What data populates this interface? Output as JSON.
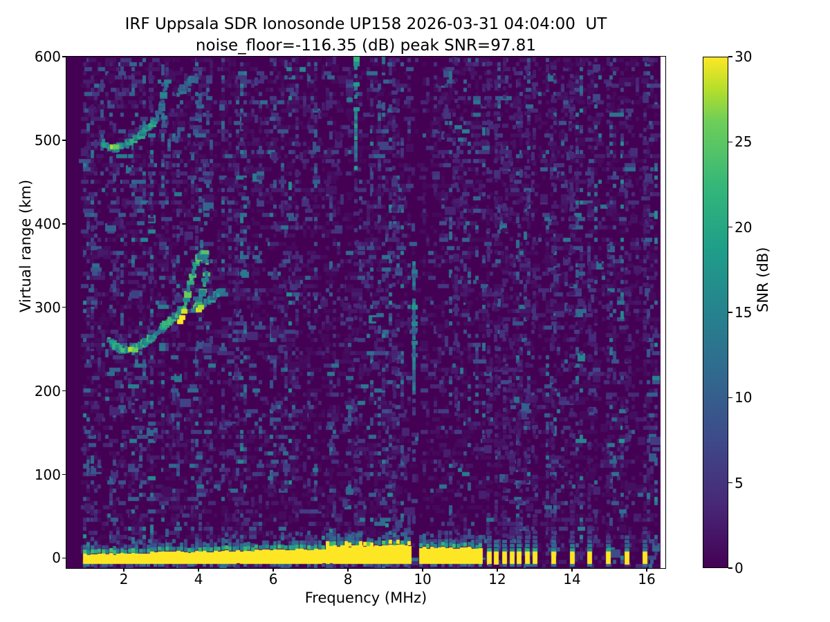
{
  "title": {
    "line1": "IRF Uppsala SDR Ionosonde UP158 2026-03-31 04:04:00  UT",
    "line2": "noise_floor=-116.35 (dB) peak SNR=97.81"
  },
  "chart_data": {
    "type": "heatmap",
    "title": "IRF Uppsala SDR Ionosonde UP158 2026-03-31 04:04:00  UT",
    "subtitle": "noise_floor=-116.35 (dB) peak SNR=97.81",
    "station": "UP158",
    "timestamp_ut": "2026-03-31 04:04:00",
    "noise_floor_db": -116.35,
    "peak_snr_db": 97.81,
    "xlabel": "Frequency (MHz)",
    "ylabel": "Virtual range (km)",
    "xlim": [
      0.46,
      16.5
    ],
    "ylim": [
      -12,
      600
    ],
    "xticks": [
      2,
      4,
      6,
      8,
      10,
      12,
      14,
      16
    ],
    "yticks": [
      0,
      100,
      200,
      300,
      400,
      500,
      600
    ],
    "grid": false,
    "colorbar": {
      "label": "SNR (dB)",
      "min": 0,
      "max": 30,
      "ticks": [
        0,
        5,
        10,
        15,
        20,
        25,
        30
      ],
      "colormap": "viridis"
    },
    "colors": {
      "background_min": "#440154",
      "peak_max": "#fde725",
      "frame": "#000000",
      "page": "#ffffff"
    },
    "viridis_stops": [
      [
        0.0,
        68,
        1,
        84
      ],
      [
        0.125,
        72,
        40,
        120
      ],
      [
        0.25,
        62,
        74,
        137
      ],
      [
        0.375,
        49,
        104,
        142
      ],
      [
        0.5,
        38,
        130,
        142
      ],
      [
        0.625,
        31,
        158,
        137
      ],
      [
        0.75,
        53,
        183,
        121
      ],
      [
        0.875,
        109,
        205,
        89
      ],
      [
        0.9375,
        180,
        222,
        44
      ],
      [
        1.0,
        253,
        231,
        37
      ]
    ],
    "render": {
      "seed": 20260331,
      "freq_step_mhz": 0.1,
      "range_step_km": 5,
      "data_start_mhz": 0.9,
      "data_end_mhz": 16.37,
      "speckle_density": 0.38,
      "dark_columns": [
        {
          "mhz": 9.82,
          "half_width_mhz": 0.14
        }
      ]
    },
    "features": {
      "ground_echo_band": {
        "mhz": [
          0.9,
          11.56
        ],
        "core_db": 30,
        "core_bottom_km": -7,
        "notch_mhz": [
          9.74,
          9.92
        ],
        "fringe_boost_mhz": [
          7.4,
          9.7
        ]
      },
      "sub_band_dash_km": -8,
      "rfi_bars": [
        {
          "mhz": 11.78,
          "cap_km": 34
        },
        {
          "mhz": 11.98,
          "cap_km": 28
        },
        {
          "mhz": 12.2,
          "cap_km": 56
        },
        {
          "mhz": 12.39,
          "cap_km": 40
        },
        {
          "mhz": 12.59,
          "cap_km": 46
        },
        {
          "mhz": 12.8,
          "cap_km": 30
        },
        {
          "mhz": 13.0,
          "cap_km": 50
        },
        {
          "mhz": 13.5,
          "cap_km": 46
        },
        {
          "mhz": 14.0,
          "cap_km": 56
        },
        {
          "mhz": 14.48,
          "cap_km": 40
        },
        {
          "mhz": 14.98,
          "cap_km": 30
        },
        {
          "mhz": 15.48,
          "cap_km": 34
        },
        {
          "mhz": 15.96,
          "cap_km": 46
        }
      ],
      "noise_streaks": [
        {
          "mhz": 1.41,
          "km": [
            460,
            598
          ],
          "db": [
            4,
            10
          ],
          "density": 0.45
        },
        {
          "mhz": 2.72,
          "km": [
            250,
            598
          ],
          "db": [
            2,
            5
          ],
          "density": 0.3
        },
        {
          "mhz": 3.07,
          "km": [
            512,
            572
          ],
          "db": [
            7,
            15
          ],
          "density": 0.5
        },
        {
          "mhz": 3.22,
          "km": [
            484,
            558
          ],
          "db": [
            7,
            15
          ],
          "density": 0.5
        },
        {
          "mhz": 4.08,
          "km": [
            363,
            455
          ],
          "db": [
            6,
            13
          ],
          "density": 0.4
        },
        {
          "mhz": 4.2,
          "km": [
            376,
            442
          ],
          "db": [
            5,
            11
          ],
          "density": 0.32
        },
        {
          "mhz": 4.05,
          "km": [
            514,
            572
          ],
          "db": [
            5,
            11
          ],
          "density": 0.32
        },
        {
          "mhz": 4.28,
          "km": [
            520,
            577
          ],
          "db": [
            5,
            11
          ],
          "density": 0.3
        },
        {
          "mhz": 5.02,
          "km": [
            -10,
            598
          ],
          "db": [
            2,
            5
          ],
          "density": 0.3
        },
        {
          "mhz": 6.65,
          "km": [
            80,
            598
          ],
          "db": [
            2,
            6
          ],
          "density": 0.32
        },
        {
          "mhz": 8.22,
          "km": [
            462,
            600
          ],
          "db": [
            9,
            20
          ],
          "density": 0.85
        },
        {
          "mhz": 8.22,
          "km": [
            -8,
            462
          ],
          "db": [
            2,
            6
          ],
          "density": 0.35
        },
        {
          "mhz": 9.24,
          "km": [
            -8,
            598
          ],
          "db": [
            2,
            6
          ],
          "density": 0.5
        },
        {
          "mhz": 9.78,
          "km": [
            198,
            356
          ],
          "db": [
            9,
            18
          ],
          "density": 0.92
        },
        {
          "mhz": 9.78,
          "km": [
            18,
            198
          ],
          "db": [
            3,
            8
          ],
          "density": 0.42
        },
        {
          "mhz": 10.9,
          "km": [
            -8,
            598
          ],
          "db": [
            2,
            5
          ],
          "density": 0.3
        }
      ],
      "echo_traces": [
        {
          "name": "F-trace-1hop",
          "db": [
            11,
            24
          ],
          "density": 1,
          "points": [
            [
              1.6,
              263
            ],
            [
              1.7,
              257
            ],
            [
              1.82,
              252
            ],
            [
              1.95,
              249
            ],
            [
              2.1,
              249
            ],
            [
              2.25,
              251
            ],
            [
              2.42,
              254
            ],
            [
              2.58,
              258
            ],
            [
              2.74,
              263
            ],
            [
              2.9,
              269
            ],
            [
              3.06,
              276
            ],
            [
              3.22,
              283
            ],
            [
              3.38,
              290
            ],
            [
              3.52,
              296
            ],
            [
              3.62,
              300
            ]
          ]
        },
        {
          "name": "F-cusp-loop",
          "db": [
            13,
            26
          ],
          "density": 1,
          "points": [
            [
              3.62,
              300
            ],
            [
              3.68,
              311
            ],
            [
              3.74,
              323
            ],
            [
              3.81,
              336
            ],
            [
              3.9,
              348
            ],
            [
              4.0,
              358
            ],
            [
              4.1,
              364
            ],
            [
              4.18,
              364
            ],
            [
              4.23,
              355
            ],
            [
              4.21,
              341
            ],
            [
              4.15,
              326
            ],
            [
              4.07,
              312
            ],
            [
              3.98,
              302
            ],
            [
              3.9,
              296
            ]
          ]
        },
        {
          "name": "F-trace-xmode",
          "db": [
            9,
            19
          ],
          "density": 0.9,
          "points": [
            [
              3.95,
              298
            ],
            [
              4.08,
              302
            ],
            [
              4.22,
              306
            ],
            [
              4.36,
              311
            ],
            [
              4.5,
              316
            ],
            [
              4.62,
              320
            ]
          ]
        },
        {
          "name": "F-trace-2hop",
          "db": [
            10,
            22
          ],
          "density": 1,
          "points": [
            [
              1.46,
              498
            ],
            [
              1.56,
              493
            ],
            [
              1.7,
              491
            ],
            [
              1.85,
              491
            ],
            [
              2.0,
              494
            ],
            [
              2.16,
              498
            ],
            [
              2.33,
              503
            ],
            [
              2.5,
              509
            ],
            [
              2.66,
              515
            ],
            [
              2.8,
              521
            ],
            [
              2.9,
              526
            ]
          ]
        },
        {
          "name": "F-2hop-riser",
          "db": [
            8,
            16
          ],
          "density": 0.7,
          "points": [
            [
              2.94,
              533
            ],
            [
              3.0,
              543
            ],
            [
              3.06,
              553
            ],
            [
              3.12,
              562
            ],
            [
              3.17,
              570
            ]
          ]
        },
        {
          "name": "F-2hop-upper-arc",
          "db": [
            7,
            14
          ],
          "density": 0.65,
          "points": [
            [
              3.46,
              555
            ],
            [
              3.58,
              561
            ],
            [
              3.7,
              567
            ],
            [
              3.82,
              572
            ],
            [
              3.93,
              577
            ]
          ]
        },
        {
          "name": "F-2hop-blobs",
          "db": [
            8,
            14
          ],
          "density": 0.7,
          "points": [
            [
              3.42,
              501
            ],
            [
              3.47,
              508
            ],
            [
              3.52,
              515
            ]
          ]
        }
      ],
      "hot_spots": [
        [
          2.18,
          250,
          28
        ],
        [
          2.3,
          249,
          26
        ],
        [
          3.5,
          283,
          30
        ],
        [
          3.56,
          288,
          30
        ],
        [
          3.62,
          295,
          29
        ],
        [
          1.7,
          492,
          28
        ],
        [
          1.78,
          492,
          26
        ],
        [
          4.0,
          297,
          29
        ],
        [
          4.05,
          300,
          28
        ],
        [
          8.22,
          597,
          22
        ],
        [
          8.22,
          591,
          17
        ],
        [
          0.98,
          110,
          10
        ],
        [
          6.78,
          585,
          16
        ],
        [
          8.05,
          548,
          13
        ],
        [
          9.78,
          300,
          18
        ],
        [
          9.78,
          280,
          16
        ]
      ]
    }
  }
}
